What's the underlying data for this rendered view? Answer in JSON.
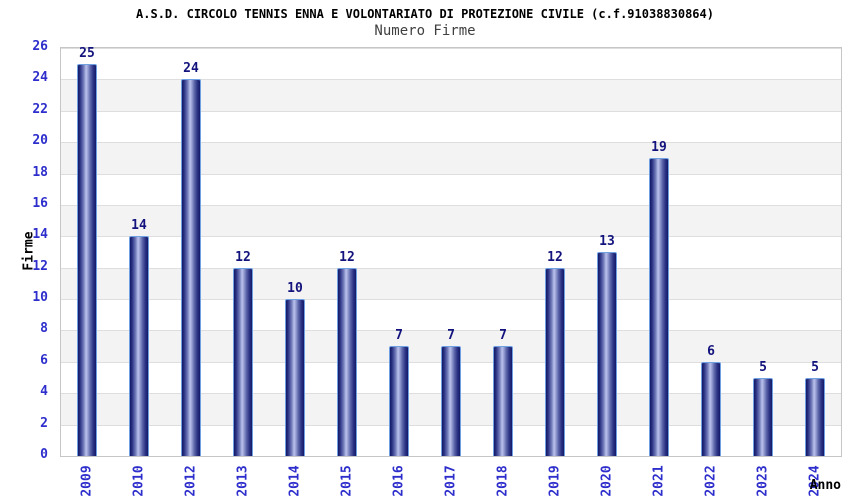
{
  "chart_data": {
    "type": "bar",
    "title": "A.S.D. CIRCOLO TENNIS ENNA E VOLONTARIATO DI PROTEZIONE CIVILE (c.f.91038830864)",
    "subtitle": "Numero Firme",
    "xlabel": "Anno",
    "ylabel": "Firme",
    "categories": [
      "2009",
      "2010",
      "2012",
      "2013",
      "2014",
      "2015",
      "2016",
      "2017",
      "2018",
      "2019",
      "2020",
      "2021",
      "2022",
      "2023",
      "2024"
    ],
    "values": [
      25,
      14,
      24,
      12,
      10,
      12,
      7,
      7,
      7,
      12,
      13,
      19,
      6,
      5,
      5
    ],
    "ylim": [
      0,
      26
    ],
    "ytick_step": 2,
    "grid": "horizontal alternating bands every 2 units",
    "legend": "none",
    "bar_value_labels_shown": true
  },
  "colors": {
    "background": "#ffffff",
    "title_text": "#000000",
    "subtitle_text": "#3f3f3f",
    "axis_tick_text": "#2e2ecc",
    "value_label_text": "#13137d",
    "axis_label_text": "#000000",
    "plot_border": "#c6c6c6",
    "grid_line": "#dedede",
    "band_gray": "#f3f3f3",
    "band_white": "#ffffff",
    "bar_dark": "#131a66",
    "bar_light": "#b7bfe8",
    "bar_border": "#6fa0e2"
  }
}
